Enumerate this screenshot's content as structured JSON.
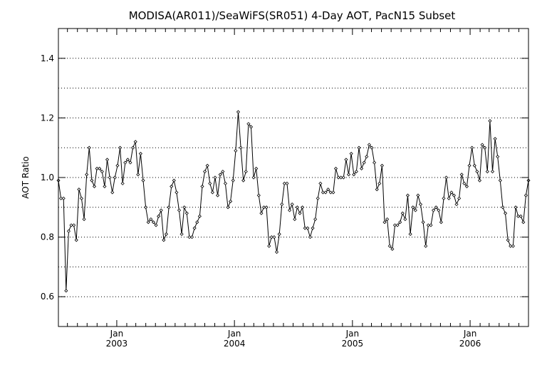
{
  "chart_data": {
    "type": "line",
    "title": "MODISA(AR011)/SeaWiFS(SR051) 4-Day AOT, PacN15 Subset",
    "ylabel": "AOT Ratio",
    "xlabel": "",
    "ylim": [
      0.5,
      1.5
    ],
    "xlim": [
      "2002-07-04",
      "2006-07-01"
    ],
    "y_ticks": [
      0.6,
      0.8,
      1.0,
      1.2,
      1.4
    ],
    "y_tick_labels": [
      "0.6",
      "0.8",
      "1.0",
      "1.2",
      "1.4"
    ],
    "x_ticks": [
      {
        "date": "2003-01-01",
        "month": "Jan",
        "year": "2003"
      },
      {
        "date": "2004-01-01",
        "month": "Jan",
        "year": "2004"
      },
      {
        "date": "2005-01-01",
        "month": "Jan",
        "year": "2005"
      },
      {
        "date": "2006-01-01",
        "month": "Jan",
        "year": "2006"
      }
    ],
    "grid": "horizontal-dotted",
    "series": [
      {
        "values": [
          0.99,
          0.93,
          0.93,
          0.62,
          0.82,
          0.84,
          0.84,
          0.79,
          0.96,
          0.93,
          0.86,
          1.01,
          1.1,
          0.99,
          0.97,
          1.03,
          1.03,
          1.02,
          0.97,
          1.06,
          1.0,
          0.95,
          1.0,
          1.04,
          1.1,
          0.98,
          1.05,
          1.06,
          1.05,
          1.1,
          1.12,
          1.01,
          1.08,
          0.99,
          0.9,
          0.85,
          0.86,
          0.85,
          0.84,
          0.87,
          0.89,
          0.79,
          0.81,
          0.9,
          0.97,
          0.99,
          0.95,
          0.89,
          0.81,
          0.9,
          0.88,
          0.8,
          0.8,
          0.83,
          0.85,
          0.87,
          0.97,
          1.02,
          1.04,
          0.98,
          0.95,
          1.0,
          0.94,
          1.01,
          1.02,
          0.98,
          0.9,
          0.92,
          0.99,
          1.09,
          1.22,
          1.1,
          0.99,
          1.02,
          1.18,
          1.17,
          1.0,
          1.03,
          0.94,
          0.88,
          0.9,
          0.9,
          0.77,
          0.8,
          0.8,
          0.75,
          0.81,
          0.91,
          0.98,
          0.98,
          0.89,
          0.91,
          0.86,
          0.9,
          0.88,
          0.9,
          0.83,
          0.83,
          0.8,
          0.83,
          0.86,
          0.93,
          0.98,
          0.95,
          0.95,
          0.96,
          0.95,
          0.95,
          1.03,
          1.0,
          1.0,
          1.0,
          1.06,
          1.01,
          1.08,
          1.01,
          1.02,
          1.1,
          1.03,
          1.05,
          1.07,
          1.11,
          1.1,
          1.05,
          0.96,
          0.98,
          1.04,
          0.85,
          0.86,
          0.77,
          0.76,
          0.84,
          0.84,
          0.85,
          0.88,
          0.86,
          0.94,
          0.81,
          0.9,
          0.89,
          0.94,
          0.91,
          0.85,
          0.77,
          0.84,
          0.84,
          0.89,
          0.9,
          0.89,
          0.85,
          0.93,
          1.0,
          0.93,
          0.95,
          0.94,
          0.91,
          0.93,
          1.01,
          0.98,
          0.97,
          1.04,
          1.1,
          1.04,
          1.02,
          0.99,
          1.11,
          1.1,
          1.02,
          1.19,
          1.02,
          1.13,
          1.07,
          0.99,
          0.9,
          0.88,
          0.79,
          0.77,
          0.77,
          0.9,
          0.87,
          0.87,
          0.85,
          0.94,
          0.99
        ]
      }
    ]
  }
}
